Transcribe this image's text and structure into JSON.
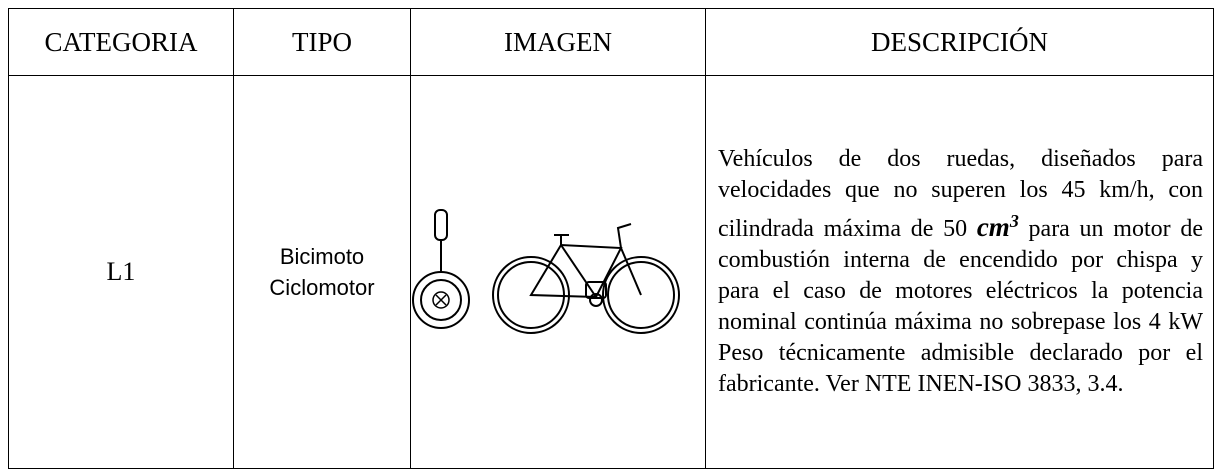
{
  "table": {
    "headers": [
      "CATEGORIA",
      "TIPO",
      "IMAGEN",
      "DESCRIPCIÓN"
    ],
    "rows": [
      {
        "category": "L1",
        "type": [
          "Bicimoto",
          "Ciclomotor"
        ],
        "description": {
          "before": "Vehículos de dos ruedas, diseñados para velocidades que no superen los 45 km/h, con cilindrada máxima de 50 ",
          "unit": "cm",
          "exponent": "3",
          "after": " para un motor de combustión interna de encendido por chispa y para el caso de motores eléctricos la potencia nominal continúa máxima no sobrepase los 4 kW Peso técnicamente admisible declarado por el fabricante. Ver NTE INEN-ISO 3833, 3.4."
        }
      }
    ]
  }
}
